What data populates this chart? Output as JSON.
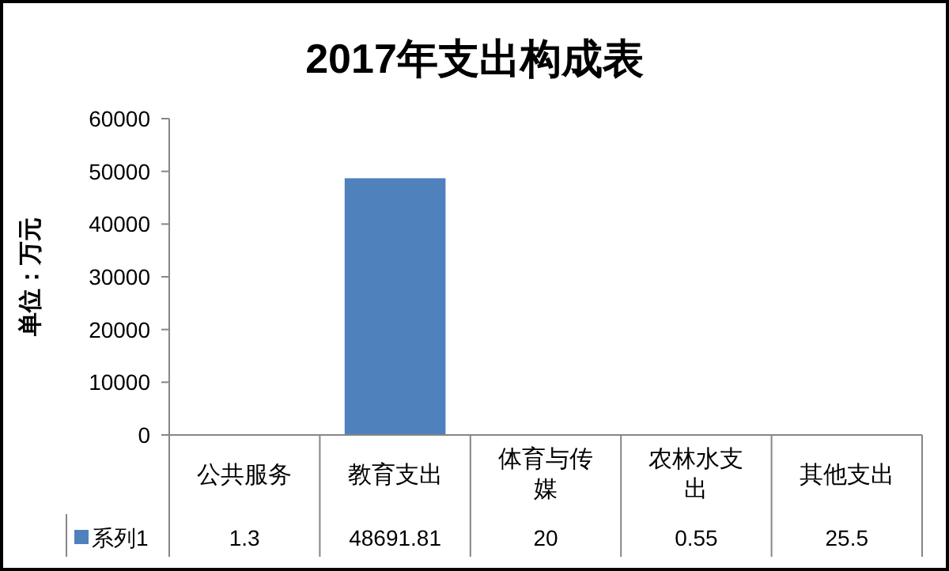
{
  "chart_data": {
    "type": "bar",
    "title": "2017年支出构成表",
    "ylabel": "单位：万元",
    "categories": [
      "公共服务",
      "教育支出",
      "体育与传媒",
      "农林水支出",
      "其他支出"
    ],
    "series": [
      {
        "name": "系列1",
        "color": "#4f81bd",
        "values": [
          1.3,
          48691.81,
          20,
          0.55,
          25.5
        ]
      }
    ],
    "ylim": [
      0,
      60000
    ],
    "yticks": [
      0,
      10000,
      20000,
      30000,
      40000,
      50000,
      60000
    ],
    "data_labels": true,
    "grid": false,
    "legend": "bottom"
  }
}
